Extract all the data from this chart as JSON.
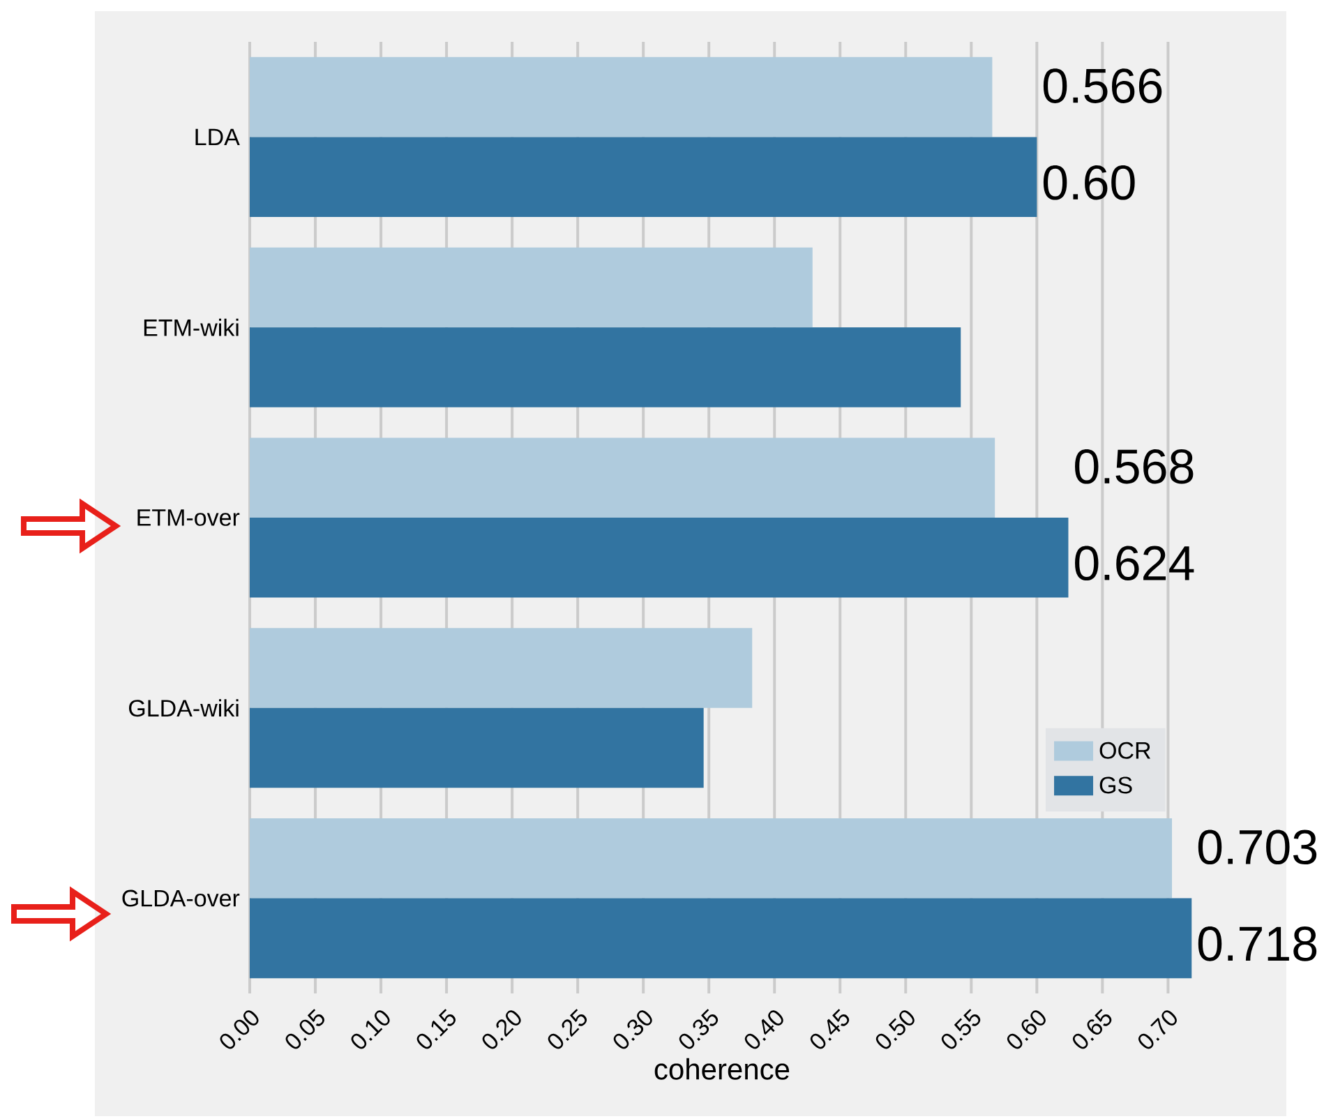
{
  "chart_data": {
    "type": "bar",
    "orientation": "horizontal",
    "xlabel": "coherence",
    "categories": [
      "LDA",
      "ETM-wiki",
      "ETM-over",
      "GLDA-wiki",
      "GLDA-over"
    ],
    "series": [
      {
        "name": "OCR",
        "color": "#afcbdd",
        "values": [
          0.566,
          0.429,
          0.568,
          0.383,
          0.703
        ],
        "value_labels": [
          "0.566",
          null,
          "0.568",
          null,
          "0.703"
        ]
      },
      {
        "name": "GS",
        "color": "#3274a1",
        "values": [
          0.6,
          0.542,
          0.624,
          0.346,
          0.718
        ],
        "value_labels": [
          "0.60",
          null,
          "0.624",
          null,
          "0.718"
        ]
      }
    ],
    "xlim": [
      0,
      0.72
    ],
    "xticks": [
      {
        "value": 0,
        "label": "0.00"
      },
      {
        "value": 0.05,
        "label": "0.05"
      },
      {
        "value": 0.1,
        "label": "0.10"
      },
      {
        "value": 0.15,
        "label": "0.15"
      },
      {
        "value": 0.2,
        "label": "0.20"
      },
      {
        "value": 0.25,
        "label": "0.25"
      },
      {
        "value": 0.3,
        "label": "0.30"
      },
      {
        "value": 0.35,
        "label": "0.35"
      },
      {
        "value": 0.4,
        "label": "0.40"
      },
      {
        "value": 0.45,
        "label": "0.45"
      },
      {
        "value": 0.5,
        "label": "0.50"
      },
      {
        "value": 0.55,
        "label": "0.55"
      },
      {
        "value": 0.6,
        "label": "0.60"
      },
      {
        "value": 0.65,
        "label": "0.65"
      },
      {
        "value": 0.7,
        "label": "0.70"
      }
    ],
    "grid": "x",
    "legend": "right"
  }
}
